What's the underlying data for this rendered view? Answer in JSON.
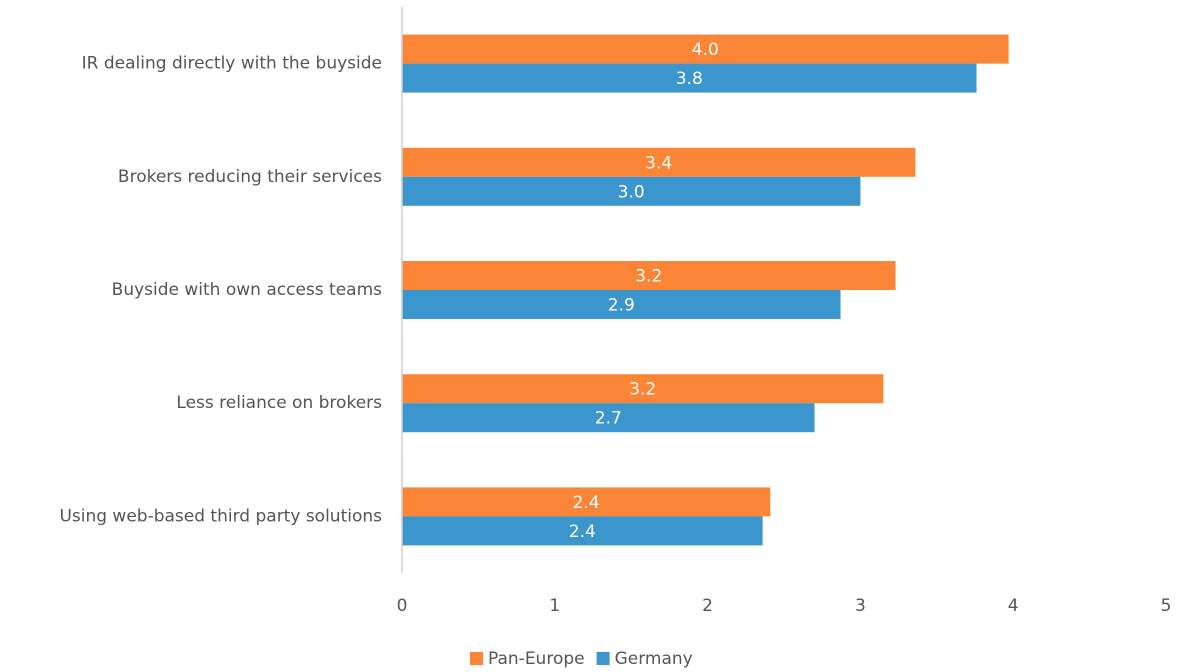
{
  "chart_data": {
    "type": "bar",
    "orientation": "horizontal",
    "categories": [
      "IR dealing directly with the buyside",
      "Brokers reducing their services",
      "Buyside with own access teams",
      "Less reliance on brokers",
      "Using web-based third party solutions"
    ],
    "series": [
      {
        "name": "Pan-Europe",
        "color": "#fb8536",
        "values": [
          3.97,
          3.36,
          3.23,
          3.15,
          2.41
        ],
        "value_labels": [
          "4.0",
          "3.4",
          "3.2",
          "3.2",
          "2.4"
        ]
      },
      {
        "name": "Germany",
        "color": "#3a96cc",
        "values": [
          3.76,
          3.0,
          2.87,
          2.7,
          2.36
        ],
        "value_labels": [
          "3.8",
          "3.0",
          "2.9",
          "2.7",
          "2.4"
        ]
      }
    ],
    "xlim": [
      0,
      5
    ],
    "xticks": [
      0,
      1,
      2,
      3,
      4,
      5
    ],
    "grid": false,
    "legend": "bottom"
  }
}
